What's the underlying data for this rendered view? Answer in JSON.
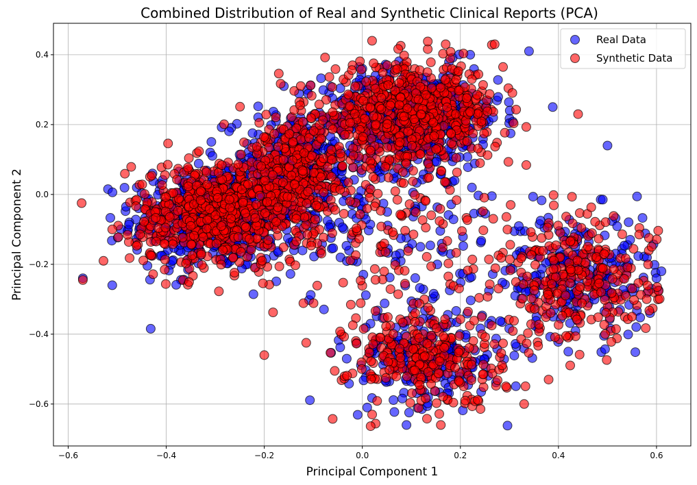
{
  "chart_data": {
    "type": "scatter",
    "title": "Combined Distribution of Real and Synthetic Clinical Reports (PCA)",
    "xlabel": "Principal Component 1",
    "ylabel": "Principal Component 2",
    "xlim": [
      -0.63,
      0.67
    ],
    "ylim": [
      -0.72,
      0.49
    ],
    "xticks": [
      -0.6,
      -0.4,
      -0.2,
      0.0,
      0.2,
      0.4,
      0.6
    ],
    "xtick_labels": [
      "−0.6",
      "−0.4",
      "−0.2",
      "0.0",
      "0.2",
      "0.4",
      "0.6"
    ],
    "yticks": [
      -0.6,
      -0.4,
      -0.2,
      0.0,
      0.2,
      0.4
    ],
    "ytick_labels": [
      "−0.6",
      "−0.4",
      "−0.2",
      "0.0",
      "0.2",
      "0.4"
    ],
    "grid": true,
    "legend_position": "top-right",
    "series": [
      {
        "name": "Real Data",
        "color": "#0000ff",
        "clusters": [
          {
            "cx": -0.3,
            "cy": -0.07,
            "sx": 0.085,
            "sy": 0.075,
            "n": 480
          },
          {
            "cx": -0.14,
            "cy": 0.06,
            "sx": 0.07,
            "sy": 0.08,
            "n": 300
          },
          {
            "cx": 0.1,
            "cy": 0.22,
            "sx": 0.09,
            "sy": 0.07,
            "n": 520
          },
          {
            "cx": 0.13,
            "cy": -0.46,
            "sx": 0.08,
            "sy": 0.07,
            "n": 220
          },
          {
            "cx": 0.44,
            "cy": -0.23,
            "sx": 0.08,
            "sy": 0.09,
            "n": 240
          },
          {
            "cx": 0.05,
            "cy": -0.1,
            "sx": 0.12,
            "sy": 0.12,
            "n": 110
          }
        ],
        "extreme_points": [
          [
            -0.46,
            0.02
          ],
          [
            -0.51,
            -0.26
          ],
          [
            0.61,
            -0.22
          ],
          [
            0.6,
            -0.24
          ],
          [
            0.01,
            -0.61
          ],
          [
            0.09,
            -0.66
          ],
          [
            0.34,
            0.41
          ],
          [
            0.42,
            -0.45
          ],
          [
            0.5,
            0.14
          ],
          [
            -0.16,
            0.31
          ],
          [
            0.0,
            0.36
          ],
          [
            0.22,
            0.4
          ],
          [
            -0.57,
            -0.24
          ],
          [
            0.59,
            -0.27
          ]
        ]
      },
      {
        "name": "Synthetic Data",
        "color": "#ff0000",
        "clusters": [
          {
            "cx": -0.3,
            "cy": -0.06,
            "sx": 0.085,
            "sy": 0.075,
            "n": 560
          },
          {
            "cx": -0.14,
            "cy": 0.06,
            "sx": 0.07,
            "sy": 0.08,
            "n": 340
          },
          {
            "cx": 0.1,
            "cy": 0.23,
            "sx": 0.09,
            "sy": 0.07,
            "n": 620
          },
          {
            "cx": 0.13,
            "cy": -0.47,
            "sx": 0.08,
            "sy": 0.07,
            "n": 260
          },
          {
            "cx": 0.44,
            "cy": -0.25,
            "sx": 0.08,
            "sy": 0.09,
            "n": 280
          },
          {
            "cx": 0.05,
            "cy": -0.12,
            "sx": 0.13,
            "sy": 0.12,
            "n": 130
          }
        ],
        "extreme_points": [
          [
            -0.57,
            -0.245
          ],
          [
            0.59,
            -0.15
          ],
          [
            0.58,
            -0.3
          ],
          [
            0.17,
            0.43
          ],
          [
            0.02,
            -0.63
          ],
          [
            0.16,
            -0.66
          ],
          [
            0.33,
            -0.6
          ],
          [
            0.44,
            0.23
          ],
          [
            -0.51,
            -0.1
          ],
          [
            0.55,
            -0.35
          ],
          [
            -0.2,
            -0.46
          ],
          [
            0.38,
            -0.53
          ],
          [
            0.27,
            0.43
          ],
          [
            0.21,
            -0.59
          ]
        ]
      }
    ]
  }
}
